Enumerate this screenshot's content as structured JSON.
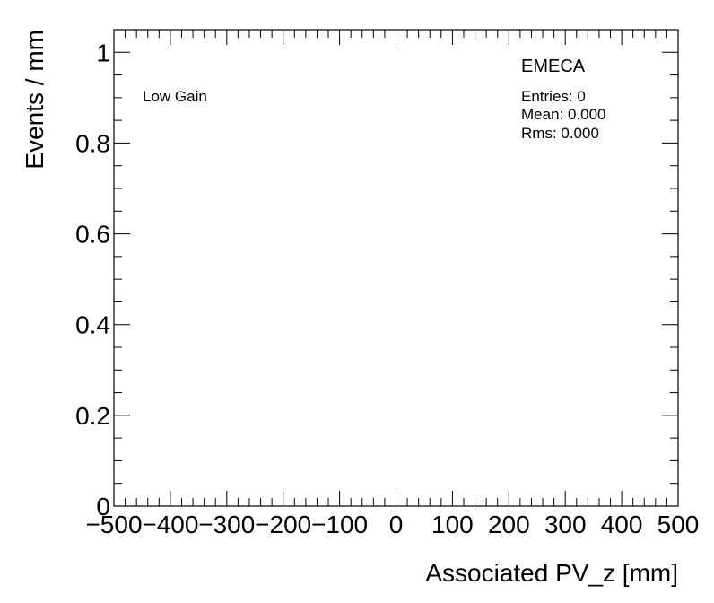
{
  "chart_data": {
    "type": "bar",
    "title": "",
    "xlabel": "Associated PV_z [mm]",
    "ylabel": "Events / mm",
    "xlim": [
      -500,
      500
    ],
    "ylim": [
      0,
      1.05
    ],
    "x_ticks": [
      -500,
      -400,
      -300,
      -200,
      -100,
      0,
      100,
      200,
      300,
      400,
      500
    ],
    "x_tick_labels": [
      "−500",
      "−400",
      "−300",
      "−200",
      "−100",
      "0",
      "100",
      "200",
      "300",
      "400",
      "500"
    ],
    "y_ticks": [
      0,
      0.2,
      0.4,
      0.6,
      0.8,
      1
    ],
    "y_tick_labels": [
      "0",
      "0.2",
      "0.4",
      "0.6",
      "0.8",
      "1"
    ],
    "categories": [],
    "values": [],
    "grid": false,
    "legend": "none"
  },
  "annotations": {
    "gain_label": "Low Gain",
    "region_label": "EMECA"
  },
  "stats_box": {
    "entries": "Entries: 0",
    "mean": "Mean: 0.000",
    "rms": "Rms: 0.000"
  }
}
